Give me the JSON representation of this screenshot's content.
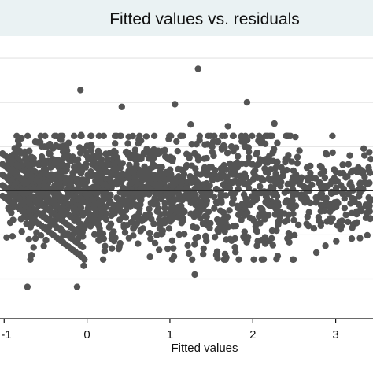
{
  "chart_data": {
    "type": "scatter",
    "title": "Fitted values vs. residuals",
    "xlabel": "Fitted values",
    "ylabel": "",
    "x_ticks": [
      -1,
      0,
      1,
      2,
      3
    ],
    "x_tick_labels": [
      "-1",
      "0",
      "1",
      "2",
      "3"
    ],
    "xlim": [
      -1.05,
      3.45
    ],
    "ylim": [
      -1.45,
      1.75
    ],
    "y_gridlines": [
      1.5,
      1.0,
      0.5,
      0.0,
      -0.5,
      -1.0
    ],
    "reference_line_y": 0,
    "grid": true,
    "legend": "none",
    "point_color": "#545454",
    "band_color": "#eaf2f3",
    "outliers": [
      {
        "x": 1.34,
        "y": 1.38
      },
      {
        "x": -0.08,
        "y": 1.14
      },
      {
        "x": 0.42,
        "y": 0.95
      },
      {
        "x": 1.06,
        "y": 0.98
      },
      {
        "x": 1.93,
        "y": 1.0
      },
      {
        "x": -0.72,
        "y": -1.09
      },
      {
        "x": -0.12,
        "y": -1.09
      },
      {
        "x": -0.04,
        "y": -0.85
      },
      {
        "x": 1.3,
        "y": -0.95
      },
      {
        "x": 2.26,
        "y": 0.76
      },
      {
        "x": 1.25,
        "y": 0.75
      },
      {
        "x": 1.7,
        "y": 0.73
      },
      {
        "x": 0.41,
        "y": 0.62
      },
      {
        "x": -0.07,
        "y": 0.63
      },
      {
        "x": -0.67,
        "y": -0.73
      },
      {
        "x": -0.97,
        "y": -0.53
      },
      {
        "x": 3.2,
        "y": -0.42
      },
      {
        "x": 3.05,
        "y": -0.35
      },
      {
        "x": 1.57,
        "y": -0.69
      },
      {
        "x": 2.3,
        "y": -0.74
      },
      {
        "x": 2.15,
        "y": -0.6
      },
      {
        "x": 0.87,
        "y": -0.67
      },
      {
        "x": 1.23,
        "y": -0.71
      }
    ],
    "bands": [
      {
        "x0": -0.95,
        "x1": -0.1,
        "y_center": 0.08,
        "y_spread": 0.28,
        "count": 420
      },
      {
        "x0": -0.1,
        "x1": 1.0,
        "y_center": 0.03,
        "y_spread": 0.32,
        "count": 520
      },
      {
        "x0": 1.0,
        "x1": 2.5,
        "y_center": 0.0,
        "y_spread": 0.35,
        "count": 560
      },
      {
        "x0": 2.5,
        "x1": 3.45,
        "y_center": 0.02,
        "y_spread": 0.26,
        "count": 200
      }
    ],
    "diagonal_stripes": [
      {
        "x0": -1.02,
        "x1": -0.05,
        "y0": 0.42,
        "slope": -0.72
      },
      {
        "x0": -1.02,
        "x1": -0.05,
        "y0": 0.3,
        "slope": -0.72
      },
      {
        "x0": -1.02,
        "x1": -0.05,
        "y0": 0.18,
        "slope": -0.72
      },
      {
        "x0": -1.02,
        "x1": -0.05,
        "y0": 0.06,
        "slope": -0.72
      },
      {
        "x0": -1.02,
        "x1": -0.05,
        "y0": -0.06,
        "slope": -0.72
      }
    ]
  }
}
